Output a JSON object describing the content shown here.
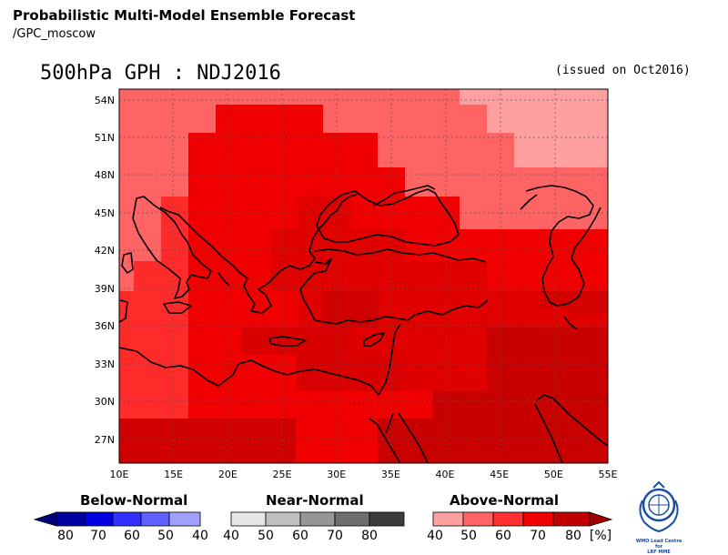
{
  "header": {
    "title": "Probabilistic Multi-Model Ensemble Forecast",
    "subtitle": "/GPC_moscow",
    "map_title": "500hPa GPH : NDJ2016",
    "issued": "(issued on Oct2016)"
  },
  "map": {
    "lat_labels": [
      "54N",
      "51N",
      "48N",
      "45N",
      "42N",
      "39N",
      "36N",
      "33N",
      "30N",
      "27N"
    ],
    "lon_labels": [
      "10E",
      "15E",
      "20E",
      "25E",
      "30E",
      "35E",
      "40E",
      "45E",
      "50E",
      "55E"
    ],
    "lon_range": [
      10,
      55
    ],
    "lat_range": [
      25,
      55
    ]
  },
  "legend": {
    "below": {
      "title": "Below-Normal",
      "labels": [
        "80",
        "70",
        "60",
        "50",
        "40"
      ],
      "colors": [
        "#0000a0",
        "#0000e0",
        "#3030ff",
        "#6060ff",
        "#a0a0ff"
      ]
    },
    "near": {
      "title": "Near-Normal",
      "labels": [
        "40",
        "50",
        "60",
        "70",
        "80"
      ],
      "colors": [
        "#e6e6e6",
        "#c0c0c0",
        "#969696",
        "#6e6e6e",
        "#3c3c3c"
      ]
    },
    "above": {
      "title": "Above-Normal",
      "labels": [
        "40",
        "50",
        "60",
        "70",
        "80"
      ],
      "colors": [
        "#ffa0a0",
        "#ff6464",
        "#ff3030",
        "#f00000",
        "#c00000"
      ]
    },
    "unit": "[%]"
  },
  "logo": {
    "text1": "WMO Lead Centre for",
    "text2": "LRF MME"
  }
}
